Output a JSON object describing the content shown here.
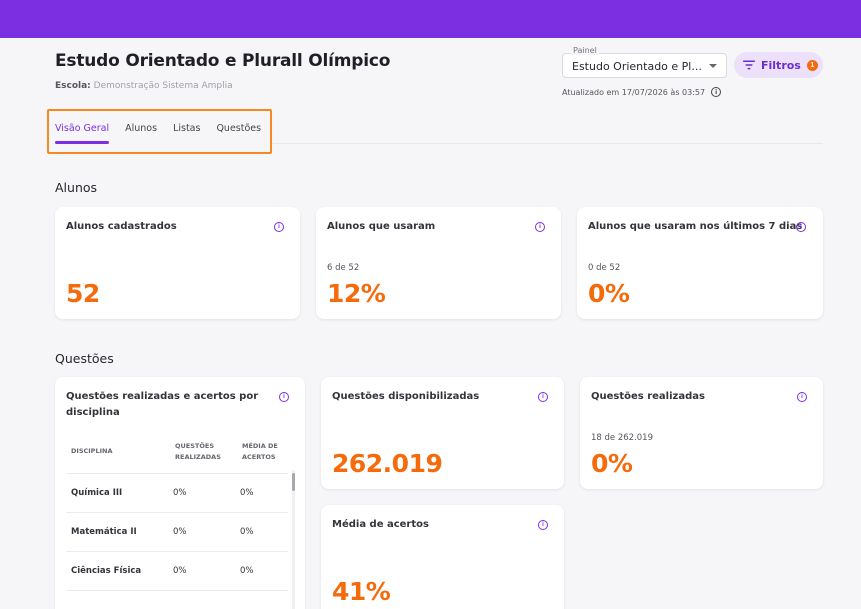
{
  "header": {
    "title": "Estudo Orientado e Plurall Olímpico",
    "school_label": "Escola:",
    "school_name": "Demonstração Sistema Amplia"
  },
  "panel": {
    "label": "Painel",
    "value": "Estudo Orientado e Plurall Olímpico"
  },
  "filters": {
    "label": "Filtros",
    "count": "1",
    "icon": "filter-icon"
  },
  "updated": {
    "text": "Atualizado em 17/07/2026 às 03:57",
    "icon": "info-icon"
  },
  "tabs": [
    {
      "label": "Visão Geral",
      "active": true
    },
    {
      "label": "Alunos",
      "active": false
    },
    {
      "label": "Listas",
      "active": false
    },
    {
      "label": "Questões",
      "active": false
    }
  ],
  "sections": {
    "alunos": "Alunos",
    "questoes": "Questões"
  },
  "alunos_cards": [
    {
      "title": "Alunos cadastrados",
      "sub": "",
      "value": "52"
    },
    {
      "title": "Alunos que usaram",
      "sub": "6 de 52",
      "value": "12%"
    },
    {
      "title": "Alunos que usaram nos últimos 7 dias",
      "sub": "0 de 52",
      "value": "0%"
    }
  ],
  "disciplinas": {
    "title_line1": "Questões realizadas e acertos por",
    "title_line2": "disciplina",
    "columns": {
      "disciplina": "DISCIPLINA",
      "questoes_l1": "QUESTÕES",
      "questoes_l2": "REALIZADAS",
      "media_l1": "MÉDIA DE",
      "media_l2": "ACERTOS"
    },
    "rows": [
      {
        "name": "Química III",
        "questoes": "0%",
        "media": "0%"
      },
      {
        "name": "Matemática II",
        "questoes": "0%",
        "media": "0%"
      },
      {
        "name": "Ciências Física",
        "questoes": "0%",
        "media": "0%"
      }
    ]
  },
  "questoes_cards": {
    "disponibilizadas": {
      "title": "Questões disponibilizadas",
      "value": "262.019"
    },
    "realizadas": {
      "title": "Questões realizadas",
      "sub": "18 de 262.019",
      "value": "0%"
    },
    "media": {
      "title": "Média de acertos",
      "value": "41%"
    }
  },
  "colors": {
    "brand": "#7b2fe0",
    "accent": "#f56a0a",
    "highlight": "#f5881f"
  }
}
